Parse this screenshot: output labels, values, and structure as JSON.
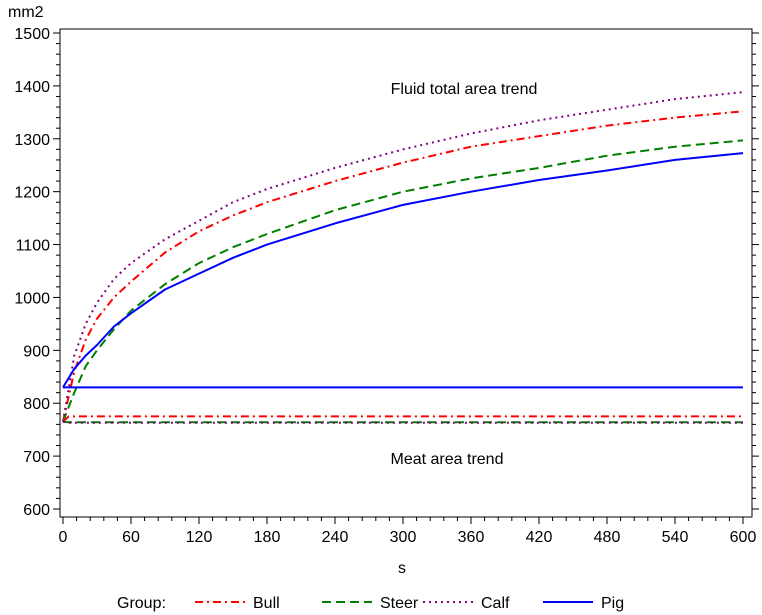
{
  "chart_data": {
    "type": "line",
    "ylabel": "mm2",
    "xlabel": "s",
    "xlim": [
      0,
      600
    ],
    "ylim": [
      600,
      1500
    ],
    "xticks": [
      0,
      60,
      120,
      180,
      240,
      300,
      360,
      420,
      480,
      540,
      600
    ],
    "yticks": [
      600,
      700,
      800,
      900,
      1000,
      1100,
      1200,
      1300,
      1400,
      1500
    ],
    "grid": false,
    "annotations": [
      {
        "text": "Fluid total area trend",
        "x": 300,
        "y": 1395
      },
      {
        "text": "Meat area trend",
        "x": 300,
        "y": 690
      }
    ],
    "legend": {
      "position": "bottom",
      "title": "Group:"
    },
    "series": [
      {
        "name": "Bull",
        "group": "fluid",
        "color": "#ff0000",
        "dash": "dashdot",
        "x": [
          0,
          10,
          20,
          30,
          45,
          60,
          90,
          120,
          150,
          180,
          240,
          300,
          360,
          420,
          480,
          540,
          600
        ],
        "y": [
          765,
          860,
          920,
          960,
          1000,
          1030,
          1085,
          1125,
          1155,
          1180,
          1220,
          1255,
          1285,
          1305,
          1325,
          1340,
          1352
        ]
      },
      {
        "name": "Steer",
        "group": "fluid",
        "color": "#008000",
        "dash": "dash",
        "x": [
          0,
          10,
          20,
          30,
          45,
          60,
          90,
          120,
          150,
          180,
          240,
          300,
          360,
          420,
          480,
          540,
          600
        ],
        "y": [
          765,
          820,
          870,
          900,
          940,
          975,
          1025,
          1065,
          1095,
          1120,
          1165,
          1200,
          1225,
          1245,
          1268,
          1285,
          1297
        ]
      },
      {
        "name": "Calf",
        "group": "fluid",
        "color": "#800080",
        "dash": "dot",
        "x": [
          0,
          10,
          20,
          30,
          45,
          60,
          90,
          120,
          150,
          180,
          240,
          300,
          360,
          420,
          480,
          540,
          600
        ],
        "y": [
          765,
          890,
          950,
          990,
          1035,
          1065,
          1110,
          1145,
          1180,
          1205,
          1245,
          1280,
          1310,
          1335,
          1355,
          1375,
          1388
        ]
      },
      {
        "name": "Pig",
        "group": "fluid",
        "color": "#0000ff",
        "dash": "solid",
        "x": [
          0,
          10,
          20,
          30,
          45,
          60,
          90,
          120,
          150,
          180,
          240,
          300,
          360,
          420,
          480,
          540,
          600
        ],
        "y": [
          830,
          865,
          890,
          910,
          945,
          970,
          1015,
          1045,
          1075,
          1100,
          1140,
          1175,
          1200,
          1222,
          1240,
          1260,
          1273
        ]
      },
      {
        "name": "Bull",
        "group": "meat",
        "color": "#ff0000",
        "dash": "dashdot",
        "x": [
          0,
          5,
          600
        ],
        "y": [
          765,
          775,
          775
        ]
      },
      {
        "name": "Steer",
        "group": "meat",
        "color": "#008000",
        "dash": "dash",
        "x": [
          0,
          5,
          600
        ],
        "y": [
          765,
          764,
          764
        ]
      },
      {
        "name": "Calf",
        "group": "meat",
        "color": "#800080",
        "dash": "dot",
        "x": [
          0,
          5,
          600
        ],
        "y": [
          765,
          763,
          763
        ]
      },
      {
        "name": "Pig",
        "group": "meat",
        "color": "#0000ff",
        "dash": "solid",
        "x": [
          0,
          600
        ],
        "y": [
          830,
          830
        ]
      }
    ]
  }
}
